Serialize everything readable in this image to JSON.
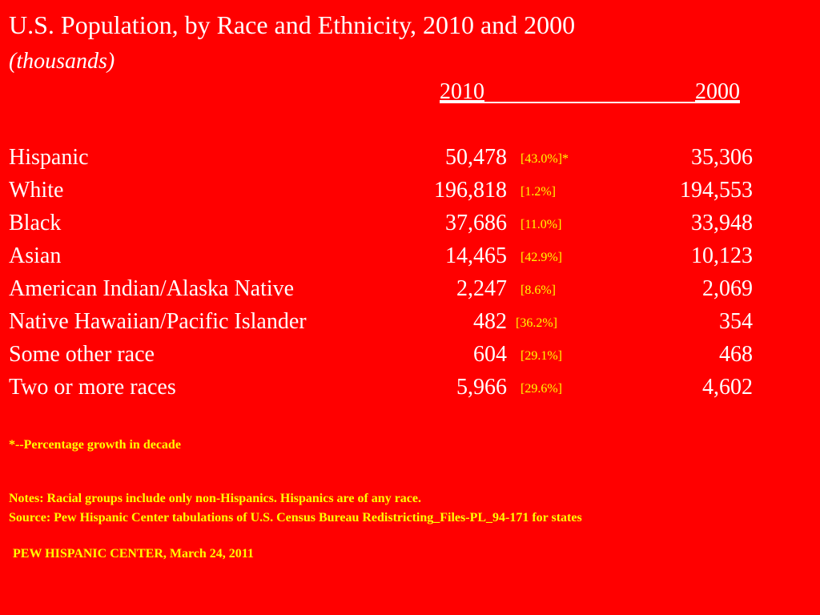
{
  "title": "U.S. Population, by Race and Ethnicity, 2010 and 2000",
  "subtitle": "(thousands)",
  "headers": {
    "col1": "2010",
    "col2": "2000"
  },
  "rows": [
    {
      "label": "Hispanic",
      "v2010": "50,478",
      "pct": "[43.0%]*",
      "v2000": "35,306"
    },
    {
      "label": "White",
      "v2010": "196,818",
      "pct": "[1.2%]",
      "v2000": "194,553"
    },
    {
      "label": "Black",
      "v2010": "37,686",
      "pct": "[11.0%]",
      "v2000": "33,948"
    },
    {
      "label": "Asian",
      "v2010": "14,465",
      "pct": "[42.9%]",
      "v2000": "10,123"
    },
    {
      "label": "American Indian/Alaska Native",
      "v2010": "2,247",
      "pct": "[8.6%]",
      "v2000": "2,069"
    },
    {
      "label": "Native Hawaiian/Pacific Islander",
      "v2010": "482",
      "pct": "[36.2%]",
      "v2000": "354"
    },
    {
      "label": "Some other race",
      "v2010": "604",
      "pct": "[29.1%]",
      "v2000": "468"
    },
    {
      "label": "Two or more races",
      "v2010": "5,966",
      "pct": "[29.6%]",
      "v2000": "4,602"
    }
  ],
  "footnote": "*--Percentage growth in decade",
  "notes": "Notes: Racial groups include only non-Hispanics. Hispanics are of any race.",
  "source": "Source: Pew Hispanic Center tabulations of U.S. Census Bureau Redistricting_Files-PL_94-171 for states",
  "credit": "PEW HISPANIC CENTER, March 24, 2011",
  "colors": {
    "background": "#ff0000",
    "text": "#ffffff",
    "accent": "#ffff00"
  }
}
